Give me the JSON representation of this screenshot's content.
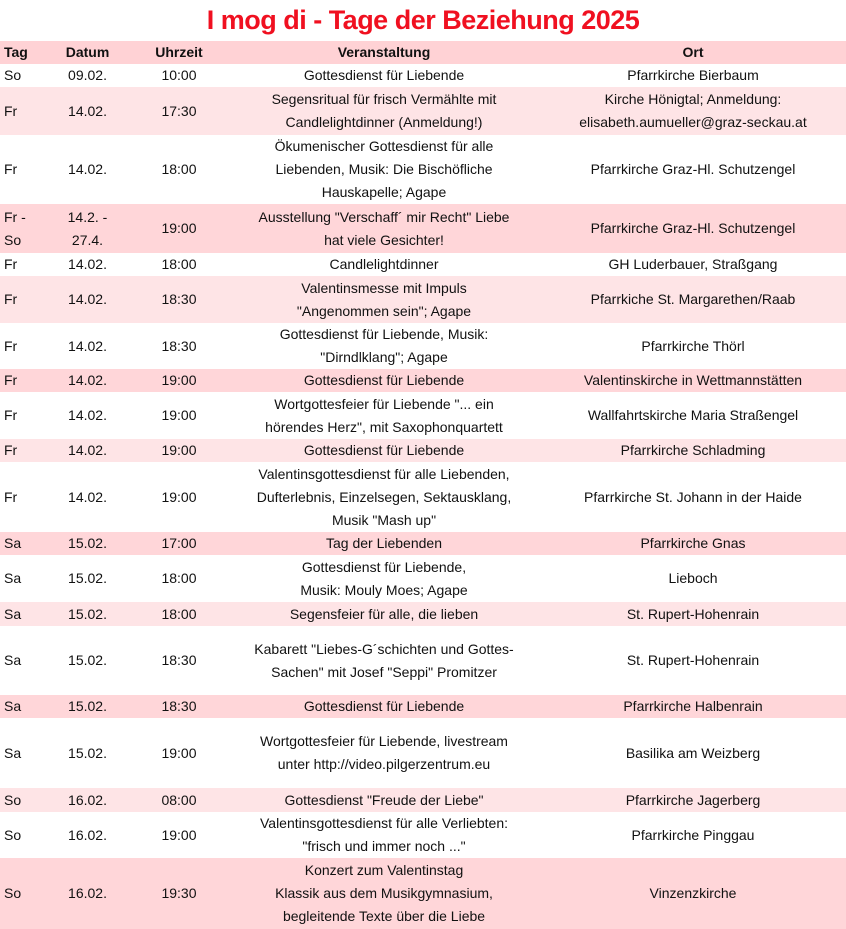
{
  "title": "I mog di - Tage der Beziehung 2025",
  "columns": [
    "Tag",
    "Datum",
    "Uhrzeit",
    "Veranstaltung",
    "Ort"
  ],
  "colors": {
    "title": "#f01020",
    "header_bg": "#ffd2d5",
    "row_dark": "#ffd6d9",
    "row_light": "#fee4e6"
  },
  "rows": [
    {
      "tag": "So",
      "datum": "09.02.",
      "uhrzeit": "10:00",
      "veranstaltung": "Gottesdienst für Liebende",
      "ort": "Pfarrkirche Bierbaum",
      "shade": "none"
    },
    {
      "tag": "Fr",
      "datum": "14.02.",
      "uhrzeit": "17:30",
      "veranstaltung": "Segensritual für frisch Vermählte mit\nCandlelightdinner (Anmeldung!)",
      "ort": "Kirche Hönigtal; Anmeldung:\nelisabeth.aumueller@graz-seckau.at",
      "shade": "light"
    },
    {
      "tag": "Fr",
      "datum": "14.02.",
      "uhrzeit": "18:00",
      "veranstaltung": "Ökumenischer Gottesdienst für alle\nLiebenden, Musik: Die Bischöfliche\nHauskapelle; Agape",
      "ort": "Pfarrkirche Graz-Hl. Schutzengel",
      "shade": "none"
    },
    {
      "tag": "Fr -\nSo",
      "datum": "14.2. -\n27.4.",
      "uhrzeit": "19:00",
      "veranstaltung": "Ausstellung \"Verschaff´ mir Recht\" Liebe\nhat viele Gesichter!",
      "ort": "Pfarrkirche Graz-Hl. Schutzengel",
      "shade": "dark"
    },
    {
      "tag": "Fr",
      "datum": "14.02.",
      "uhrzeit": "18:00",
      "veranstaltung": "Candlelightdinner",
      "ort": "GH Luderbauer, Straßgang",
      "shade": "none"
    },
    {
      "tag": "Fr",
      "datum": "14.02.",
      "uhrzeit": "18:30",
      "veranstaltung": "Valentinsmesse mit Impuls\n\"Angenommen sein\"; Agape",
      "ort": "Pfarrkiche St. Margarethen/Raab",
      "shade": "light"
    },
    {
      "tag": "Fr",
      "datum": "14.02.",
      "uhrzeit": "18:30",
      "veranstaltung": "Gottesdienst für Liebende, Musik:\n\"Dirndlklang\"; Agape",
      "ort": "Pfarrkirche Thörl",
      "shade": "none"
    },
    {
      "tag": "Fr",
      "datum": "14.02.",
      "uhrzeit": "19:00",
      "veranstaltung": "Gottesdienst für Liebende",
      "ort": "Valentinskirche in Wettmannstätten",
      "shade": "dark"
    },
    {
      "tag": "Fr",
      "datum": "14.02.",
      "uhrzeit": "19:00",
      "veranstaltung": "Wortgottesfeier für Liebende \"... ein\nhörendes Herz\", mit Saxophonquartett",
      "ort": "Wallfahrtskirche Maria Straßengel",
      "shade": "none"
    },
    {
      "tag": "Fr",
      "datum": "14.02.",
      "uhrzeit": "19:00",
      "veranstaltung": "Gottesdienst für Liebende",
      "ort": "Pfarrkirche Schladming",
      "shade": "light"
    },
    {
      "tag": "Fr",
      "datum": "14.02.",
      "uhrzeit": "19:00",
      "veranstaltung": "Valentinsgottesdienst für alle Liebenden,\nDufterlebnis, Einzelsegen,  Sektausklang,\nMusik \"Mash up\"",
      "ort": "Pfarrkirche St. Johann in der Haide",
      "shade": "none"
    },
    {
      "tag": "Sa",
      "datum": "15.02.",
      "uhrzeit": "17:00",
      "veranstaltung": "Tag der Liebenden",
      "ort": "Pfarrkirche Gnas",
      "shade": "dark"
    },
    {
      "tag": "Sa",
      "datum": "15.02.",
      "uhrzeit": "18:00",
      "veranstaltung": "Gottesdienst für Liebende,\nMusik: Mouly Moes; Agape",
      "ort": "Lieboch",
      "shade": "none"
    },
    {
      "tag": "Sa",
      "datum": "15.02.",
      "uhrzeit": "18:00",
      "veranstaltung": "Segensfeier für alle, die lieben",
      "ort": "St. Rupert-Hohenrain",
      "shade": "light"
    },
    {
      "tag": "Sa",
      "datum": "15.02.",
      "uhrzeit": "18:30",
      "veranstaltung": "Kabarett \"Liebes-G´schichten und Gottes-\nSachen\" mit Josef \"Seppi\" Promitzer",
      "ort": "St. Rupert-Hohenrain",
      "shade": "none"
    },
    {
      "tag": "Sa",
      "datum": "15.02.",
      "uhrzeit": "18:30",
      "veranstaltung": "Gottesdienst für Liebende",
      "ort": "Pfarrkirche Halbenrain",
      "shade": "dark"
    },
    {
      "tag": "Sa",
      "datum": "15.02.",
      "uhrzeit": "19:00",
      "veranstaltung": "Wortgottesfeier für Liebende, livestream\nunter http://video.pilgerzentrum.eu",
      "ort": "Basilika am Weizberg",
      "shade": "none"
    },
    {
      "tag": "So",
      "datum": "16.02.",
      "uhrzeit": "08:00",
      "veranstaltung": "Gottesdienst \"Freude der Liebe\"",
      "ort": "Pfarrkirche Jagerberg",
      "shade": "light"
    },
    {
      "tag": "So",
      "datum": "16.02.",
      "uhrzeit": "19:00",
      "veranstaltung": "Valentinsgottesdienst für alle Verliebten:\n\"frisch und immer noch ...\"",
      "ort": "Pfarrkirche Pinggau",
      "shade": "none"
    },
    {
      "tag": "So",
      "datum": "16.02.",
      "uhrzeit": "19:30",
      "veranstaltung": "Konzert zum Valentinstag\nKlassik aus dem Musikgymnasium,\nbegleitende Texte über die Liebe",
      "ort": "Vinzenzkirche",
      "shade": "dark"
    }
  ]
}
